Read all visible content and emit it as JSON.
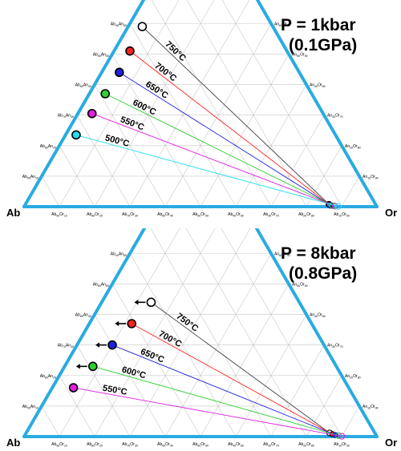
{
  "figure": {
    "corner_labels": {
      "left": "Ab",
      "right": "Or"
    },
    "colors": {
      "frame": "#29abe2",
      "grid": "#c8c8c8",
      "750": "#404040",
      "700": "#ff2020",
      "650": "#2020e0",
      "600": "#30d030",
      "550": "#e020e0",
      "500": "#20e0f0"
    }
  },
  "panels": [
    {
      "title_line1": "P = 1kbar",
      "title_line2": "(0.1GPa)",
      "left_ticks": [
        {
          "pre": "Ab",
          "a": "90",
          "mid": "An",
          "b": "10"
        },
        {
          "pre": "Ab",
          "a": "80",
          "mid": "An",
          "b": "20"
        },
        {
          "pre": "Ab",
          "a": "70",
          "mid": "An",
          "b": "30"
        },
        {
          "pre": "Ab",
          "a": "60",
          "mid": "An",
          "b": "40"
        },
        {
          "pre": "Ab",
          "a": "50",
          "mid": "An",
          "b": "50"
        },
        {
          "pre": "Ab",
          "a": "40",
          "mid": "An",
          "b": "60"
        }
      ],
      "right_ticks": [
        {
          "pre": "An",
          "a": "10",
          "mid": "Or",
          "b": "90"
        },
        {
          "pre": "An",
          "a": "20",
          "mid": "Or",
          "b": "80"
        },
        {
          "pre": "An",
          "a": "30",
          "mid": "Or",
          "b": "70"
        },
        {
          "pre": "An",
          "a": "40",
          "mid": "Or",
          "b": "60"
        },
        {
          "pre": "An",
          "a": "50",
          "mid": "Or",
          "b": "50"
        },
        {
          "pre": "An",
          "a": "60",
          "mid": "Or",
          "b": "40"
        }
      ],
      "bottom_ticks": [
        {
          "pre": "Ab",
          "a": "90",
          "mid": "Or",
          "b": "10"
        },
        {
          "pre": "Ab",
          "a": "80",
          "mid": "Or",
          "b": "20"
        },
        {
          "pre": "Ab",
          "a": "70",
          "mid": "Or",
          "b": "30"
        },
        {
          "pre": "Ab",
          "a": "60",
          "mid": "Or",
          "b": "40"
        },
        {
          "pre": "Ab",
          "a": "50",
          "mid": "Or",
          "b": "50"
        },
        {
          "pre": "Ab",
          "a": "40",
          "mid": "Or",
          "b": "60"
        },
        {
          "pre": "Ab",
          "a": "30",
          "mid": "Or",
          "b": "70"
        },
        {
          "pre": "Ab",
          "a": "20",
          "mid": "Or",
          "b": "80"
        },
        {
          "pre": "Ab",
          "a": "10",
          "mid": "Or",
          "b": "90"
        }
      ],
      "tie_lines": [
        {
          "label": "750°C",
          "color_key": "750",
          "plag": {
            "an": 59,
            "or": 4
          },
          "kfs": {
            "an": 0.8,
            "or": 86.0
          },
          "kfs_fill": false,
          "arrow": false
        },
        {
          "label": "700°C",
          "color_key": "700",
          "plag": {
            "an": 51,
            "or": 4.5
          },
          "kfs": {
            "an": 0.6,
            "or": 86.3
          },
          "kfs_fill": false,
          "arrow": false
        },
        {
          "label": "650°C",
          "color_key": "650",
          "plag": {
            "an": 44,
            "or": 5
          },
          "kfs": {
            "an": 0.4,
            "or": 86.7
          },
          "kfs_fill": false,
          "arrow": false
        },
        {
          "label": "600°C",
          "color_key": "600",
          "plag": {
            "an": 37,
            "or": 4.5
          },
          "kfs": {
            "an": 0.3,
            "or": 87.3
          },
          "kfs_fill": false,
          "arrow": false
        },
        {
          "label": "550°C",
          "color_key": "550",
          "plag": {
            "an": 30.5,
            "or": 4
          },
          "kfs": {
            "an": 0.2,
            "or": 88.0
          },
          "kfs_fill": false,
          "arrow": false
        },
        {
          "label": "500°C",
          "color_key": "500",
          "plag": {
            "an": 23.5,
            "or": 3
          },
          "kfs": {
            "an": 0.1,
            "or": 89.0
          },
          "kfs_fill": false,
          "arrow": false
        }
      ]
    },
    {
      "title_line1": "P = 8kbar",
      "title_line2": "(0.8GPa)",
      "left_ticks": [
        {
          "pre": "Ab",
          "a": "90",
          "mid": "An",
          "b": "10"
        },
        {
          "pre": "Ab",
          "a": "80",
          "mid": "An",
          "b": "20"
        },
        {
          "pre": "Ab",
          "a": "70",
          "mid": "An",
          "b": "30"
        },
        {
          "pre": "Ab",
          "a": "60",
          "mid": "An",
          "b": "40"
        },
        {
          "pre": "Ab",
          "a": "50",
          "mid": "An",
          "b": "50"
        },
        {
          "pre": "Ab",
          "a": "40",
          "mid": "An",
          "b": "60"
        }
      ],
      "right_ticks": [
        {
          "pre": "An",
          "a": "10",
          "mid": "Or",
          "b": "90"
        },
        {
          "pre": "An",
          "a": "20",
          "mid": "Or",
          "b": "80"
        },
        {
          "pre": "An",
          "a": "30",
          "mid": "Or",
          "b": "70"
        },
        {
          "pre": "An",
          "a": "40",
          "mid": "Or",
          "b": "60"
        },
        {
          "pre": "An",
          "a": "50",
          "mid": "Or",
          "b": "50"
        },
        {
          "pre": "An",
          "a": "60",
          "mid": "Or",
          "b": "40"
        }
      ],
      "bottom_ticks": [
        {
          "pre": "Ab",
          "a": "90",
          "mid": "Or",
          "b": "10"
        },
        {
          "pre": "Ab",
          "a": "80",
          "mid": "Or",
          "b": "20"
        },
        {
          "pre": "Ab",
          "a": "70",
          "mid": "Or",
          "b": "30"
        },
        {
          "pre": "Ab",
          "a": "60",
          "mid": "Or",
          "b": "40"
        },
        {
          "pre": "Ab",
          "a": "50",
          "mid": "Or",
          "b": "50"
        },
        {
          "pre": "Ab",
          "a": "40",
          "mid": "Or",
          "b": "60"
        },
        {
          "pre": "Ab",
          "a": "30",
          "mid": "Or",
          "b": "70"
        },
        {
          "pre": "Ab",
          "a": "20",
          "mid": "Or",
          "b": "80"
        },
        {
          "pre": "Ab",
          "a": "10",
          "mid": "Or",
          "b": "90"
        }
      ],
      "tie_lines": [
        {
          "label": "750°C",
          "color_key": "750",
          "plag": {
            "an": 44,
            "or": 14
          },
          "kfs": {
            "an": 1.2,
            "or": 86.0
          },
          "kfs_fill": false,
          "arrow": true
        },
        {
          "label": "700°C",
          "color_key": "700",
          "plag": {
            "an": 37,
            "or": 12
          },
          "kfs": {
            "an": 0.8,
            "or": 87.0
          },
          "kfs_fill": true,
          "arrow": true
        },
        {
          "label": "650°C",
          "color_key": "650",
          "plag": {
            "an": 30,
            "or": 10
          },
          "kfs": {
            "an": 0.5,
            "or": 88.0
          },
          "kfs_fill": true,
          "arrow": true
        },
        {
          "label": "600°C",
          "color_key": "600",
          "plag": {
            "an": 23,
            "or": 8
          },
          "kfs": {
            "an": 0.3,
            "or": 89.0
          },
          "kfs_fill": false,
          "arrow": true
        },
        {
          "label": "550°C",
          "color_key": "550",
          "plag": {
            "an": 16,
            "or": 6
          },
          "kfs": {
            "an": 0.1,
            "or": 90.0
          },
          "kfs_fill": false,
          "arrow": false
        }
      ]
    }
  ]
}
